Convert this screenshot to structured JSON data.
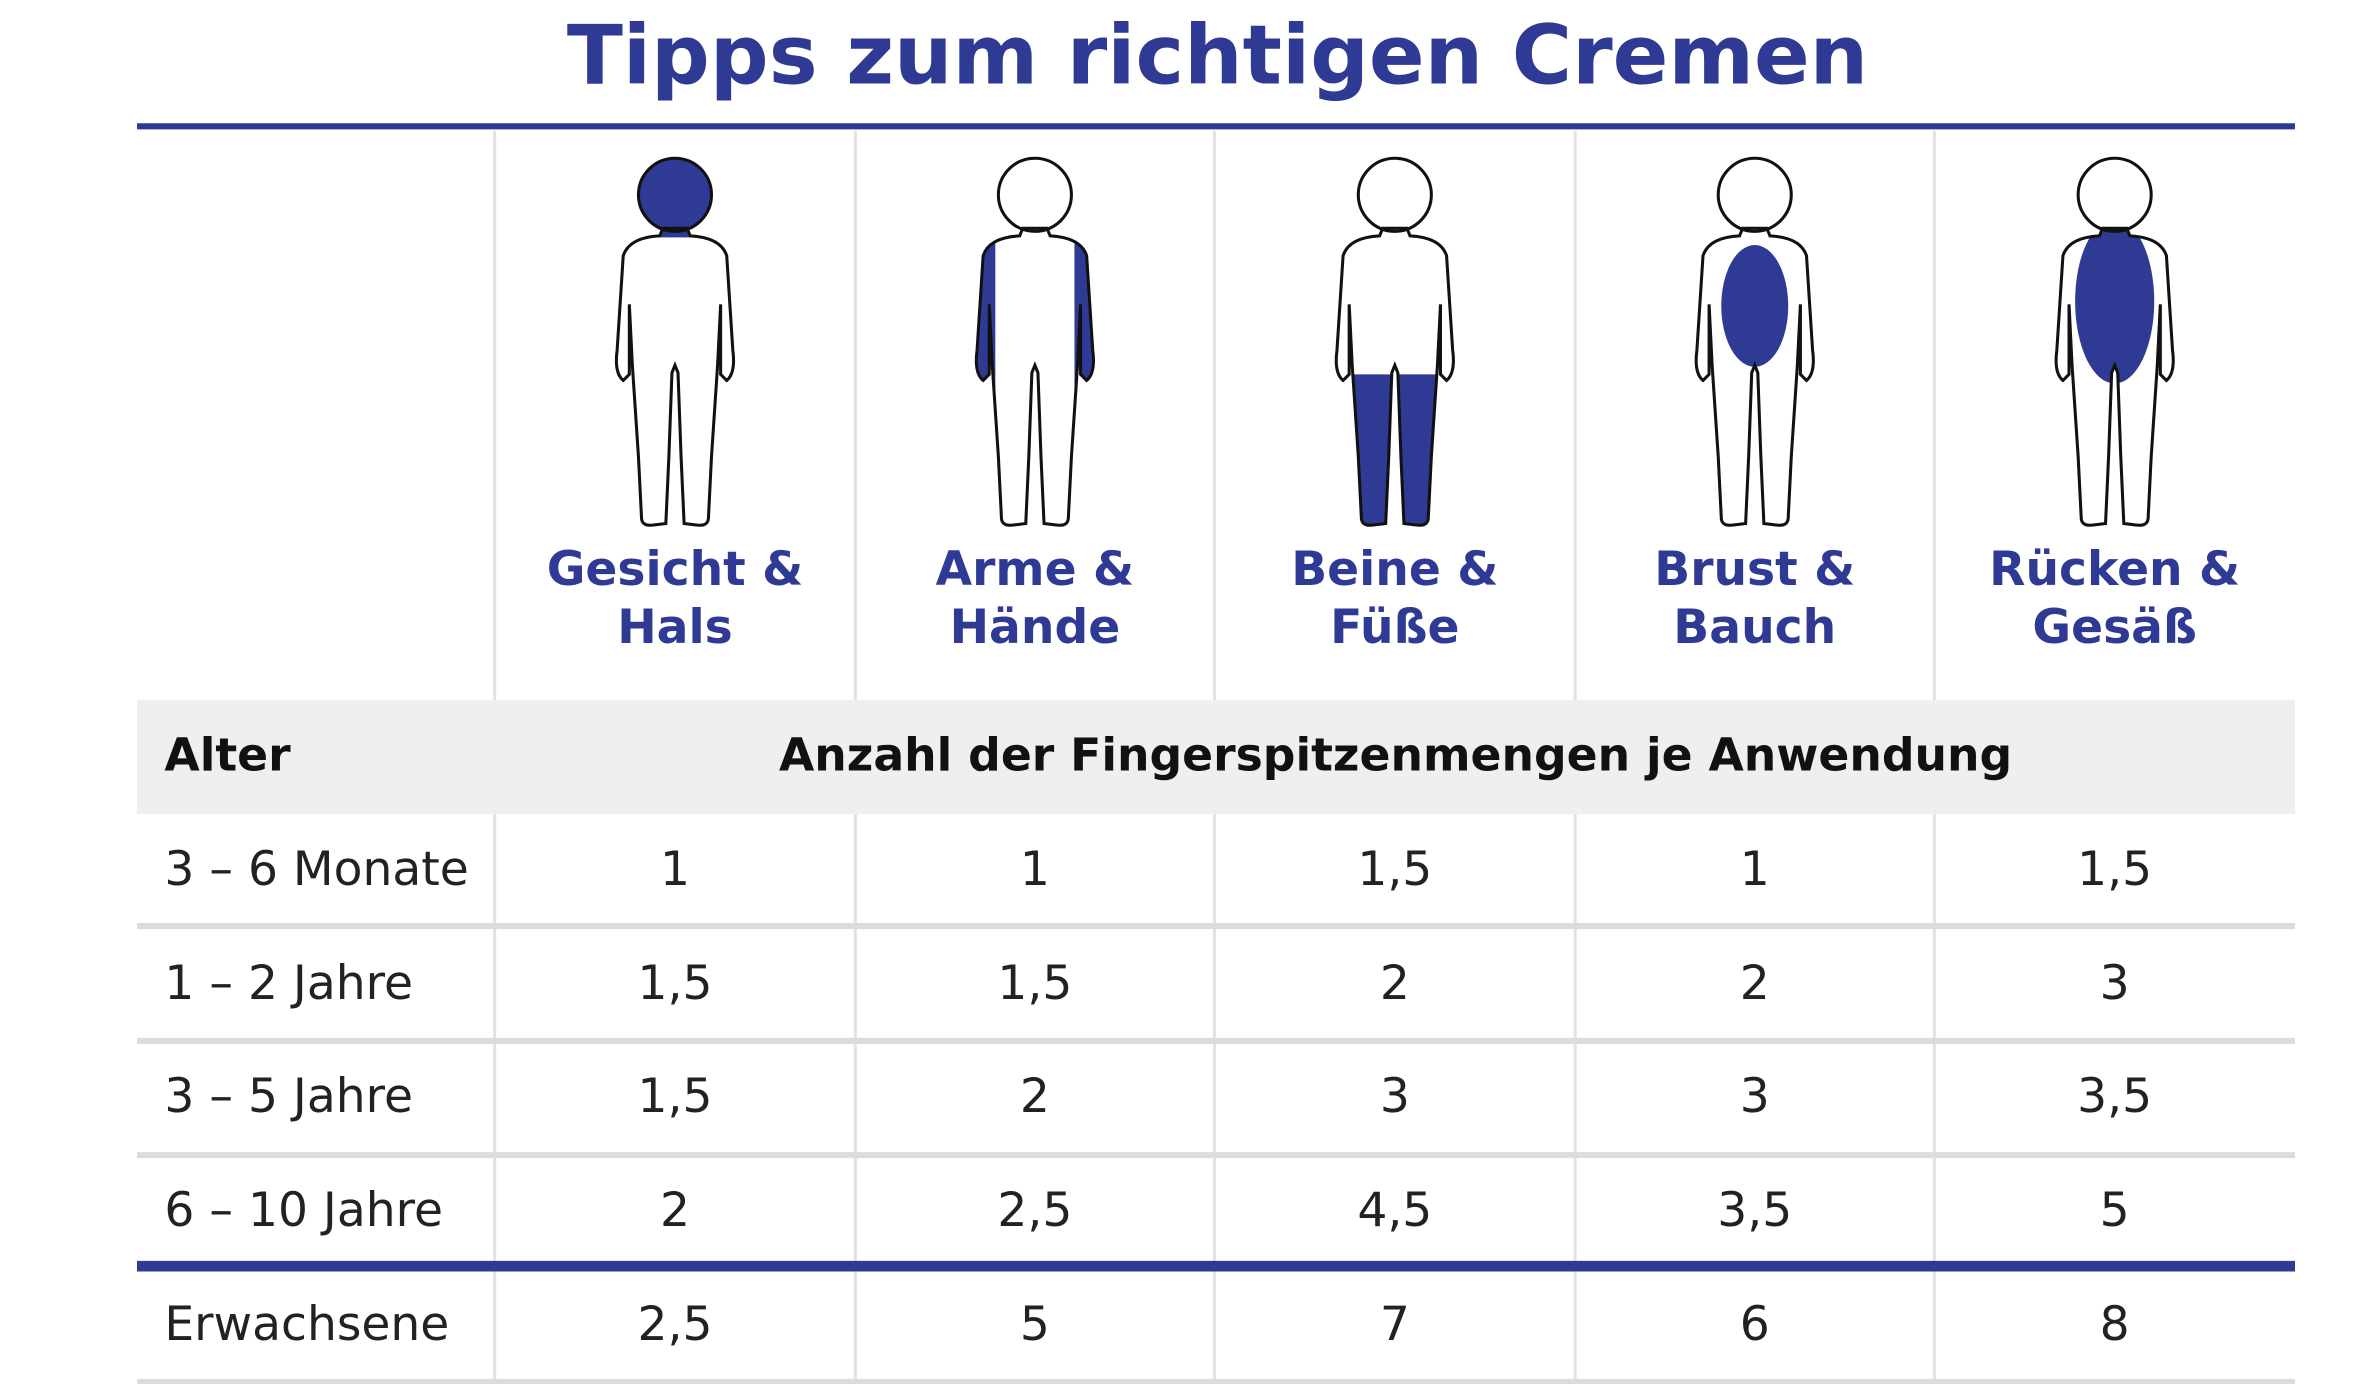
{
  "header": {
    "title": "Tipps zum richtigen Cremen"
  },
  "table": {
    "column_labels": [
      [
        "Gesicht &",
        "Hals"
      ],
      [
        "Arme &",
        "Hände"
      ],
      [
        "Beine &",
        "Füße"
      ],
      [
        "Brust &",
        "Bauch"
      ],
      [
        "Rücken &",
        "Gesäß"
      ]
    ],
    "header": [
      "Alter",
      "Anzahl der Fingerspitzenmengen je Anwendung"
    ],
    "rows": [
      [
        "3 – 6 Monate",
        "1",
        "1",
        "1,5",
        "1",
        "1,5"
      ],
      [
        "1 – 2 Jahre",
        "1,5",
        "1,5",
        "2",
        "2",
        "3"
      ],
      [
        "3 – 5 Jahre",
        "1,5",
        "2",
        "3",
        "3",
        "3,5"
      ],
      [
        "6 – 10 Jahre",
        "2",
        "2,5",
        "4,5",
        "3,5",
        "5"
      ],
      [
        "Erwachsene",
        "2,5",
        "5",
        "7",
        "6",
        "8"
      ]
    ]
  }
}
